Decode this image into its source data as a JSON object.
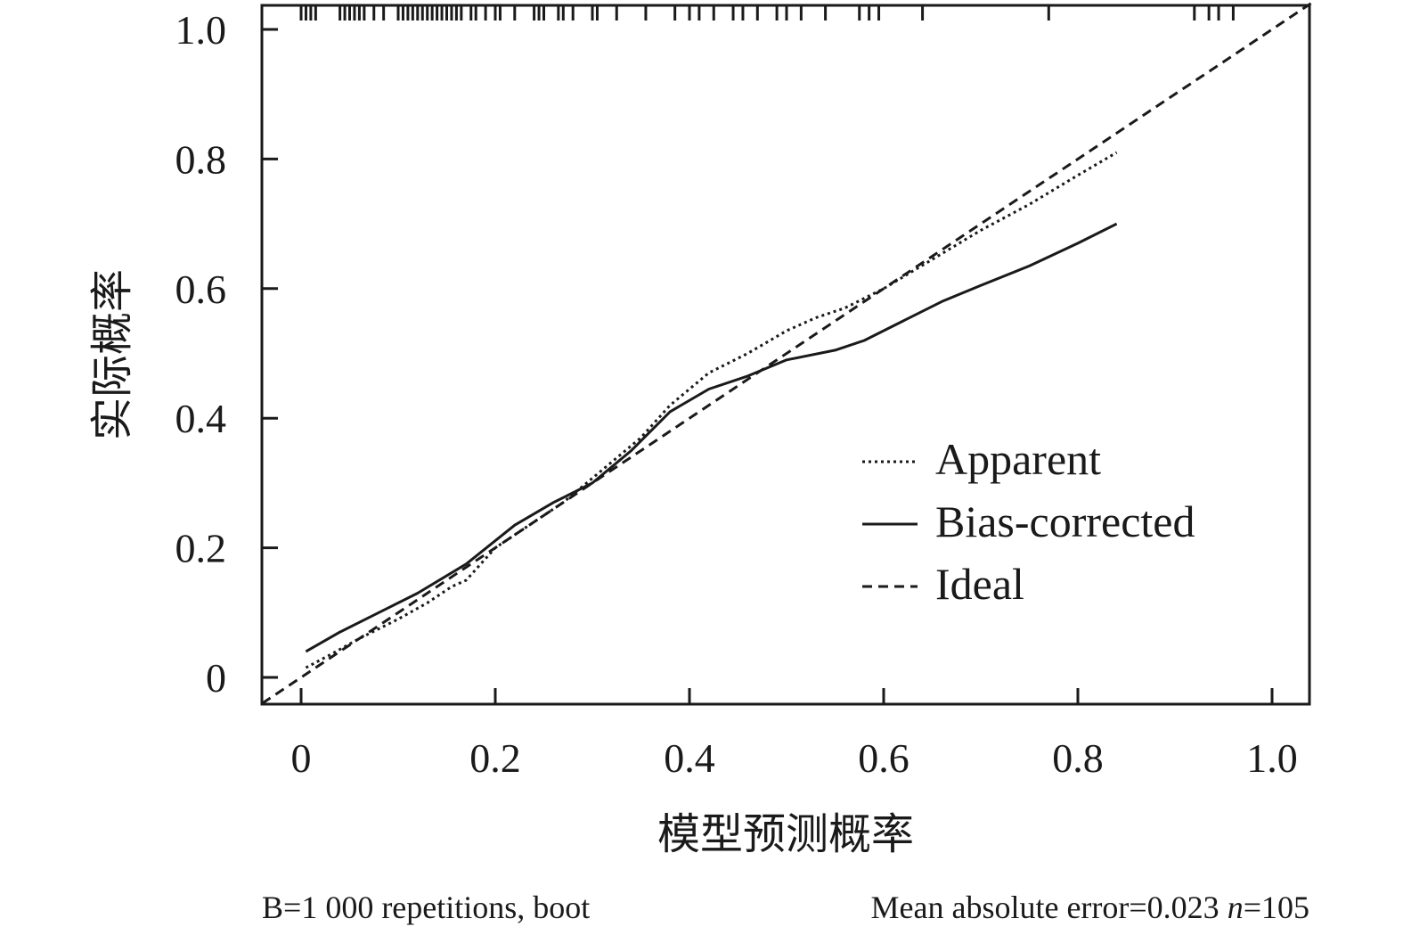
{
  "chart_data": {
    "type": "line",
    "title": "",
    "xlabel": "模型预测概率",
    "ylabel": "实际概率",
    "xlim": [
      0,
      1.0
    ],
    "ylim": [
      0,
      1.0
    ],
    "x_ticks": [
      0,
      0.2,
      0.4,
      0.6,
      0.8,
      1.0
    ],
    "x_tick_labels": [
      "0",
      "0.2",
      "0.4",
      "0.6",
      "0.8",
      "1.0"
    ],
    "y_ticks": [
      0,
      0.2,
      0.4,
      0.6,
      0.8,
      1.0
    ],
    "y_tick_labels": [
      "0",
      "0.2",
      "0.4",
      "0.6",
      "0.8",
      "1.0"
    ],
    "grid": false,
    "legend_position": "bottom-right",
    "series": [
      {
        "name": "Apparent",
        "style": "dotted",
        "x": [
          0.005,
          0.03,
          0.06,
          0.1,
          0.13,
          0.155,
          0.17,
          0.2,
          0.23,
          0.27,
          0.31,
          0.35,
          0.38,
          0.42,
          0.46,
          0.5,
          0.53,
          0.56,
          0.6,
          0.65,
          0.7,
          0.75,
          0.8,
          0.84
        ],
        "y": [
          0.015,
          0.035,
          0.06,
          0.09,
          0.115,
          0.14,
          0.15,
          0.2,
          0.23,
          0.27,
          0.32,
          0.37,
          0.42,
          0.47,
          0.5,
          0.535,
          0.555,
          0.57,
          0.6,
          0.645,
          0.69,
          0.73,
          0.775,
          0.81
        ]
      },
      {
        "name": "Bias-corrected",
        "style": "solid",
        "x": [
          0.005,
          0.04,
          0.08,
          0.12,
          0.17,
          0.22,
          0.26,
          0.3,
          0.34,
          0.38,
          0.42,
          0.46,
          0.5,
          0.55,
          0.58,
          0.62,
          0.66,
          0.7,
          0.75,
          0.8,
          0.84
        ],
        "y": [
          0.04,
          0.07,
          0.1,
          0.13,
          0.175,
          0.235,
          0.27,
          0.3,
          0.35,
          0.41,
          0.445,
          0.465,
          0.49,
          0.505,
          0.52,
          0.55,
          0.58,
          0.605,
          0.635,
          0.67,
          0.7
        ]
      },
      {
        "name": "Ideal",
        "style": "dashed",
        "x": [
          -0.04,
          1.04
        ],
        "y": [
          -0.04,
          1.04
        ]
      }
    ],
    "rug_ticks": [
      0.0,
      0.005,
      0.01,
      0.015,
      0.04,
      0.045,
      0.05,
      0.055,
      0.06,
      0.065,
      0.075,
      0.085,
      0.1,
      0.105,
      0.11,
      0.115,
      0.12,
      0.125,
      0.13,
      0.135,
      0.14,
      0.145,
      0.15,
      0.155,
      0.16,
      0.165,
      0.175,
      0.18,
      0.19,
      0.2,
      0.205,
      0.22,
      0.24,
      0.245,
      0.25,
      0.265,
      0.27,
      0.28,
      0.3,
      0.305,
      0.325,
      0.355,
      0.385,
      0.4,
      0.41,
      0.425,
      0.445,
      0.455,
      0.47,
      0.49,
      0.5,
      0.515,
      0.54,
      0.575,
      0.585,
      0.595,
      0.64,
      0.77,
      0.92,
      0.935,
      0.945,
      0.96
    ]
  },
  "footer": {
    "left": "B=1 000 repetitions, boot",
    "right_prefix": "Mean absolute error=0.023 ",
    "right_n": "n",
    "right_suffix": "=105"
  }
}
